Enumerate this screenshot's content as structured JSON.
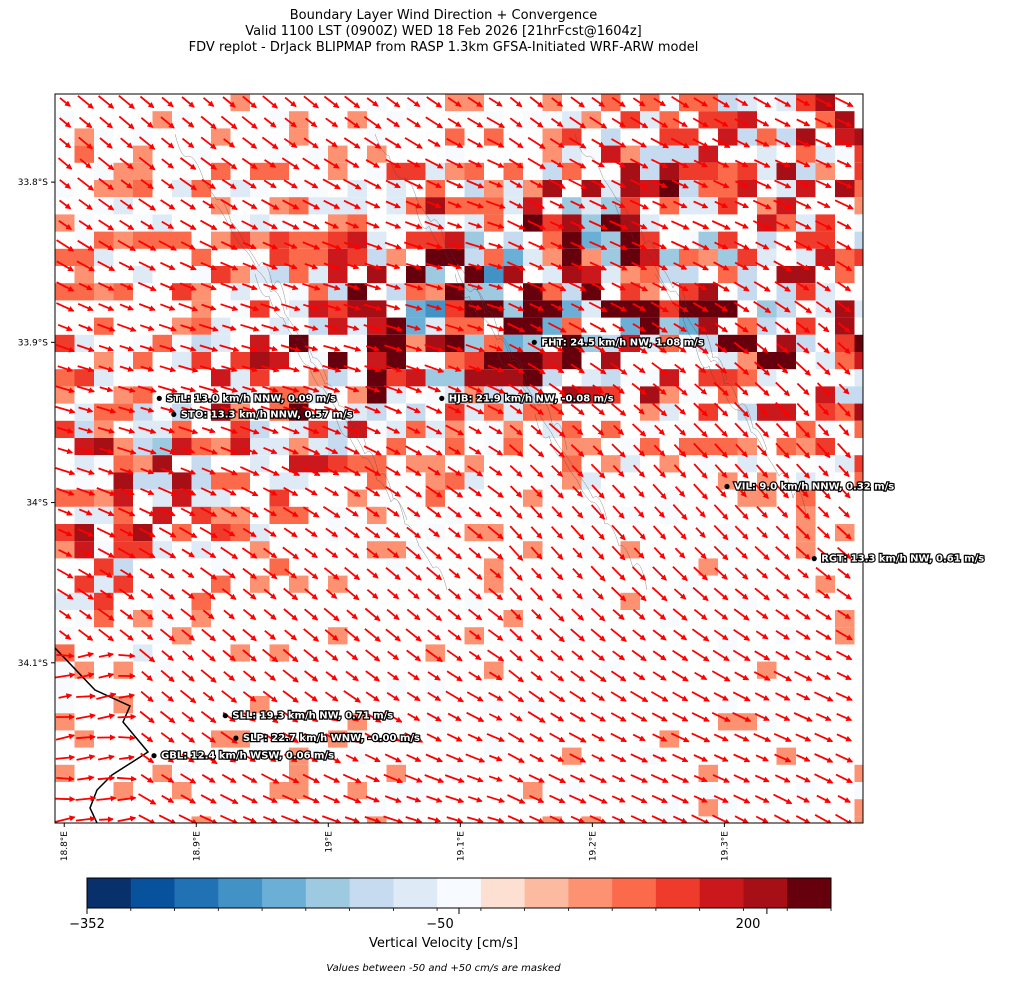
{
  "title_lines": [
    "Boundary Layer Wind Direction + Convergence",
    "Valid 1100 LST (0900Z) WED 18 Feb 2026 [21hrFcst@1604z]",
    "FDV replot - DrJack BLIPMAP from RASP 1.3km GFSA-Initiated WRF-ARW model"
  ],
  "chart_data": {
    "type": "heatmap",
    "x_ticks": [
      "18.8°E",
      "18.9°E",
      "19°E",
      "19.1°E",
      "19.2°E",
      "19.3°E"
    ],
    "x_tick_values": [
      18.8,
      18.9,
      19.0,
      19.1,
      19.2,
      19.3
    ],
    "y_ticks": [
      "33.8°S",
      "33.9°S",
      "34°S",
      "34.1°S"
    ],
    "y_tick_values": [
      -33.8,
      -33.9,
      -34.0,
      -34.1
    ],
    "xlim": [
      18.793,
      19.405
    ],
    "ylim": [
      -34.2,
      -33.745
    ],
    "stations": [
      {
        "id": "HJB",
        "label": "HJB: 21.9 km/h NW, -0.08 m/s",
        "lon": 19.086,
        "lat": -33.935
      },
      {
        "id": "FHT",
        "label": "FHT: 24.5 km/h NW, 1.08 m/s",
        "lon": 19.156,
        "lat": -33.9
      },
      {
        "id": "STL",
        "label": "STL: 13.0 km/h NNW, 0.09 m/s",
        "lon": 18.872,
        "lat": -33.935
      },
      {
        "id": "STO",
        "label": "STO: 13.3 km/h NNW, 0.57 m/s",
        "lon": 18.883,
        "lat": -33.945
      },
      {
        "id": "VIL",
        "label": "VIL: 9.0 km/h NNW, 0.32 m/s",
        "lon": 19.302,
        "lat": -33.99
      },
      {
        "id": "RGT",
        "label": "RGT: 13.3 km/h NW, 0.61 m/s",
        "lon": 19.368,
        "lat": -34.035
      },
      {
        "id": "SLL",
        "label": "SLL: 19.3 km/h NW, 0.71 m/s",
        "lon": 18.922,
        "lat": -34.133
      },
      {
        "id": "SLP",
        "label": "SLP: 22.7 km/h WNW, -0.00 m/s",
        "lon": 18.93,
        "lat": -34.147
      },
      {
        "id": "GBL",
        "label": "GBL: 12.4 km/h WSW, 0.06 m/s",
        "lon": 18.868,
        "lat": -34.158
      }
    ],
    "colorbar": {
      "label": "Vertical Velocity [cm/s]",
      "tick_labels": [
        "−352",
        "−50",
        "200"
      ],
      "tick_values": [
        -352,
        -50,
        200
      ],
      "range": [
        -352,
        252
      ],
      "colors": [
        "#08306b",
        "#08519c",
        "#2171b5",
        "#4292c6",
        "#6baed6",
        "#9ecae1",
        "#c6dbef",
        "#deebf7",
        "#f7fbff",
        "#fee0d2",
        "#fcbba1",
        "#fc9272",
        "#fb6a4a",
        "#ef3b2c",
        "#cb181d",
        "#a50f15",
        "#67000d"
      ]
    },
    "masked_note": "Values between -50 and +50 cm/s are masked",
    "wind_color": "#ff0000"
  }
}
